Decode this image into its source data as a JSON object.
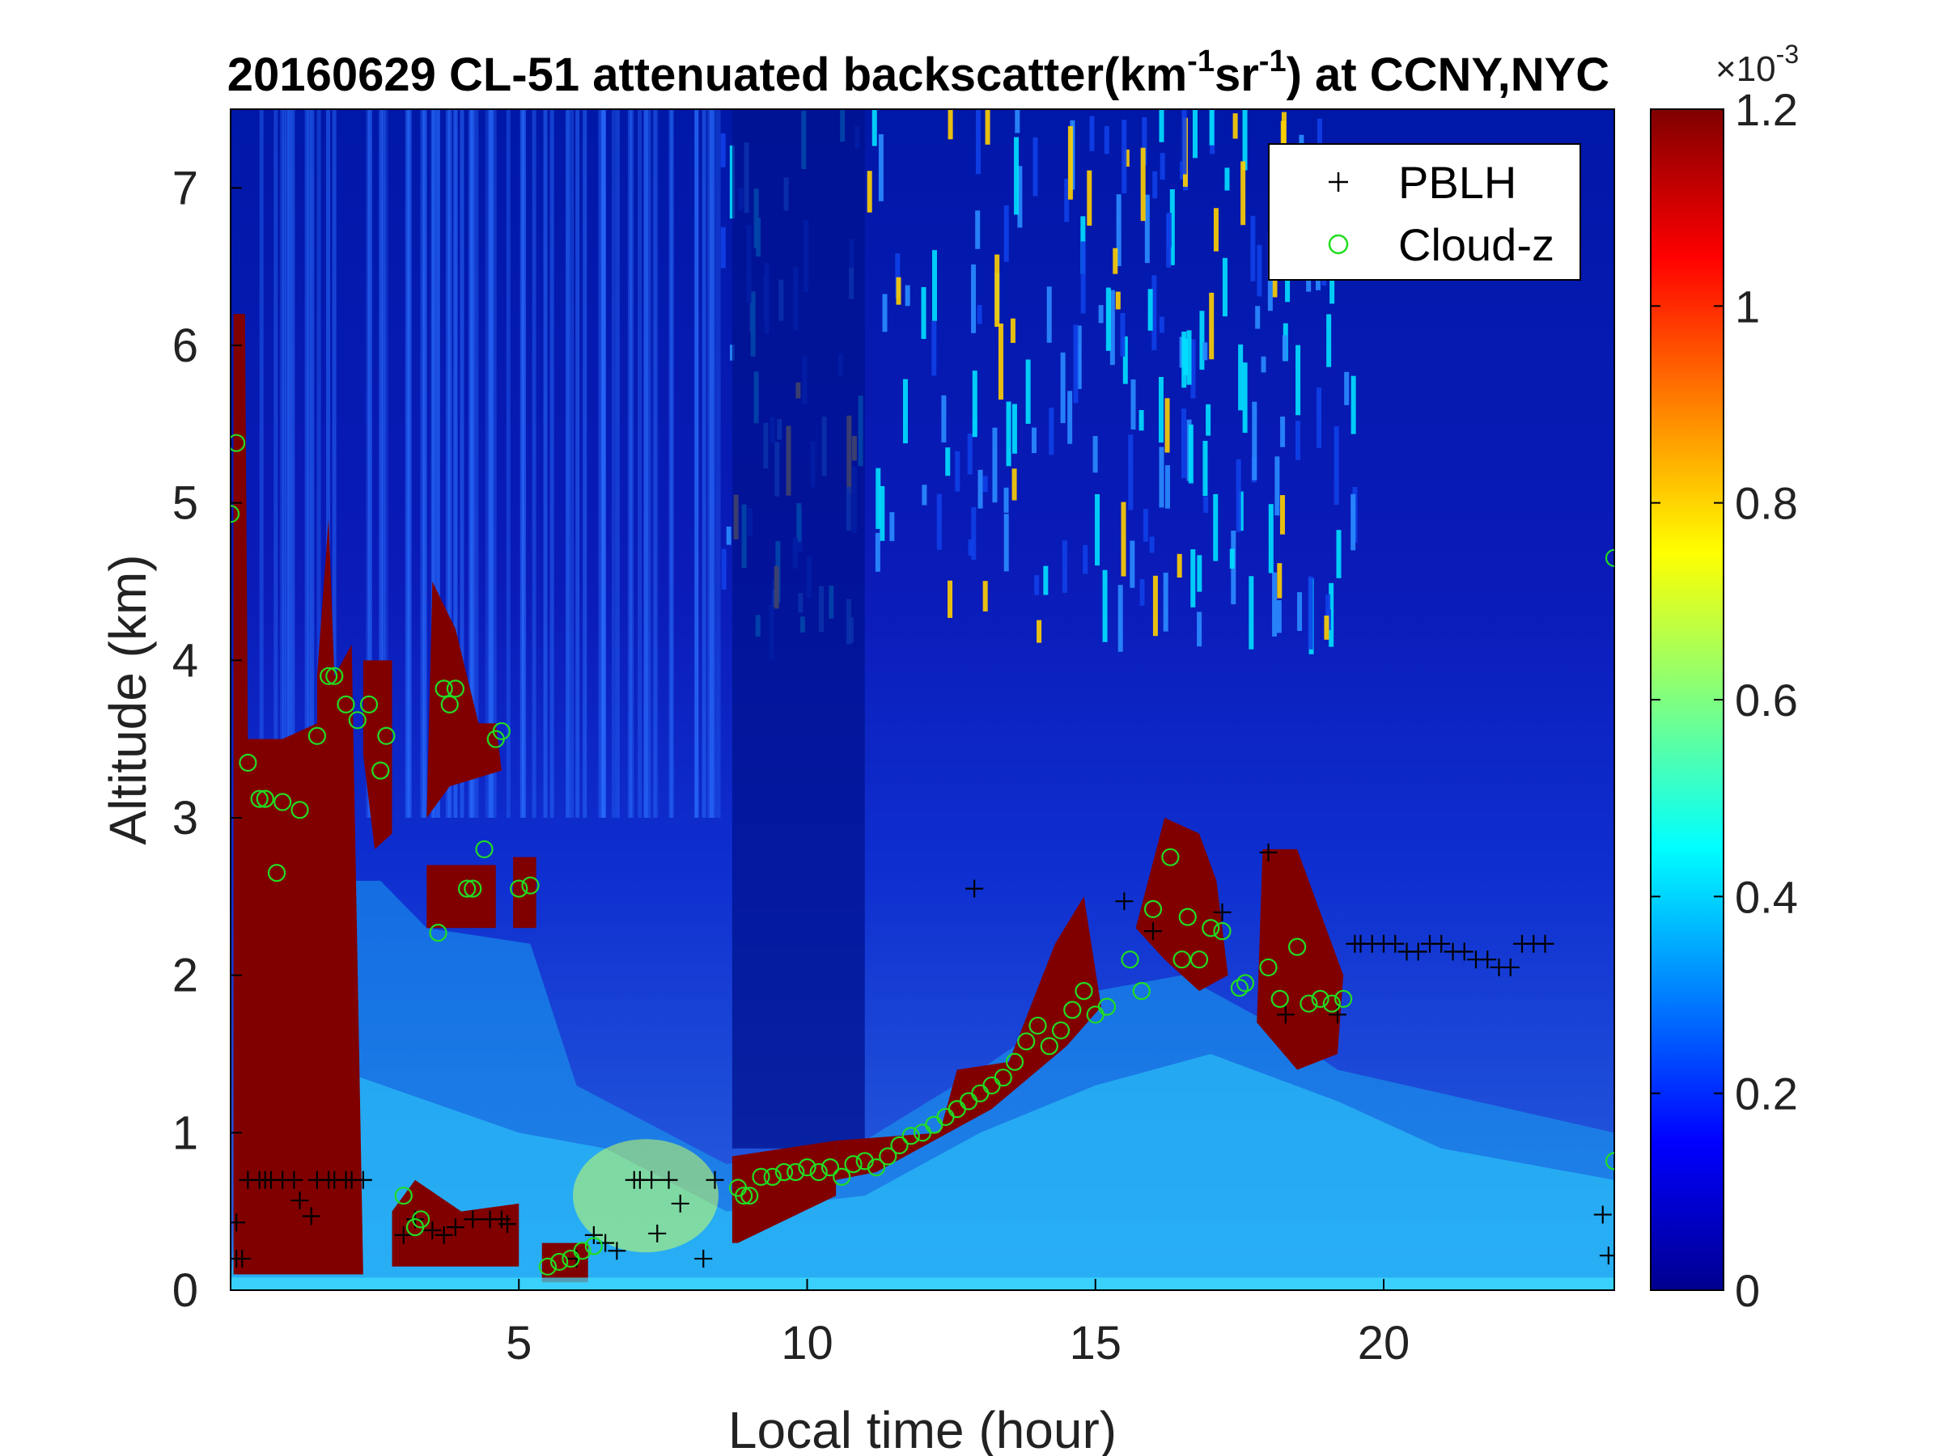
{
  "chart_data": {
    "type": "heatmap",
    "title_main": "20160629  CL-51 attenuated backscatter(km",
    "title_sup1": "-1",
    "title_mid": "sr",
    "title_sup2": "-1",
    "title_end": ") at CCNY,NYC",
    "xlabel": "Local time (hour)",
    "ylabel": "Altitude (km)",
    "xlim": [
      0,
      24
    ],
    "ylim": [
      0,
      7.5
    ],
    "x_ticks": [
      5,
      10,
      15,
      20
    ],
    "y_ticks": [
      0,
      1,
      2,
      3,
      4,
      5,
      6,
      7
    ],
    "colorbar": {
      "min": 0,
      "max": 0.0012,
      "exponent_label": "10",
      "exponent_prefix": "×",
      "exponent_sup": "-3",
      "ticks": [
        0,
        0.2,
        0.4,
        0.6,
        0.8,
        1,
        1.2
      ],
      "tick_labels": [
        "0",
        "0.2",
        "0.4",
        "0.6",
        "0.8",
        "1",
        "1.2"
      ]
    },
    "legend": {
      "placement": "top-right",
      "entries": [
        {
          "label": "PBLH",
          "marker": "+",
          "color": "#000000"
        },
        {
          "label": "Cloud-z",
          "marker": "o",
          "color": "#22dd22"
        }
      ]
    },
    "colors": {
      "background": "#00008f",
      "low": "#1a4fd6",
      "mid": "#00c8ff",
      "saturated": "#800000"
    },
    "series": [
      {
        "name": "PBLH",
        "points": [
          [
            0.1,
            0.43
          ],
          [
            0.1,
            0.2
          ],
          [
            0.2,
            0.2
          ],
          [
            0.3,
            0.7
          ],
          [
            0.5,
            0.7
          ],
          [
            0.6,
            0.7
          ],
          [
            0.7,
            0.7
          ],
          [
            0.9,
            0.7
          ],
          [
            1.1,
            0.7
          ],
          [
            1.2,
            0.57
          ],
          [
            1.4,
            0.47
          ],
          [
            1.5,
            0.7
          ],
          [
            1.7,
            0.7
          ],
          [
            1.8,
            0.7
          ],
          [
            2.0,
            0.7
          ],
          [
            2.1,
            0.7
          ],
          [
            2.3,
            0.7
          ],
          [
            3.0,
            0.35
          ],
          [
            3.2,
            0.45
          ],
          [
            3.5,
            0.38
          ],
          [
            3.7,
            0.35
          ],
          [
            3.9,
            0.4
          ],
          [
            4.2,
            0.45
          ],
          [
            4.5,
            0.45
          ],
          [
            4.7,
            0.45
          ],
          [
            4.8,
            0.42
          ],
          [
            6.0,
            0.2
          ],
          [
            6.3,
            0.35
          ],
          [
            6.5,
            0.3
          ],
          [
            6.7,
            0.25
          ],
          [
            7.0,
            0.7
          ],
          [
            7.1,
            0.7
          ],
          [
            7.3,
            0.7
          ],
          [
            7.4,
            0.36
          ],
          [
            7.6,
            0.7
          ],
          [
            7.8,
            0.55
          ],
          [
            8.2,
            0.2
          ],
          [
            8.4,
            0.7
          ],
          [
            12.9,
            2.55
          ],
          [
            15.5,
            2.47
          ],
          [
            16.0,
            2.28
          ],
          [
            17.2,
            2.4
          ],
          [
            18.0,
            2.78
          ],
          [
            18.3,
            1.75
          ],
          [
            19.2,
            1.75
          ],
          [
            19.5,
            2.2
          ],
          [
            19.6,
            2.2
          ],
          [
            19.8,
            2.2
          ],
          [
            20.0,
            2.2
          ],
          [
            20.2,
            2.2
          ],
          [
            20.4,
            2.15
          ],
          [
            20.6,
            2.15
          ],
          [
            20.8,
            2.2
          ],
          [
            21.0,
            2.2
          ],
          [
            21.2,
            2.15
          ],
          [
            21.4,
            2.15
          ],
          [
            21.6,
            2.1
          ],
          [
            21.8,
            2.1
          ],
          [
            22.0,
            2.05
          ],
          [
            22.2,
            2.05
          ],
          [
            22.4,
            2.2
          ],
          [
            22.6,
            2.2
          ],
          [
            22.8,
            2.2
          ],
          [
            23.8,
            0.48
          ],
          [
            23.9,
            0.22
          ]
        ]
      },
      {
        "name": "Cloud-z",
        "points": [
          [
            0.0,
            4.93
          ],
          [
            0.1,
            5.38
          ],
          [
            0.3,
            3.35
          ],
          [
            0.5,
            3.12
          ],
          [
            0.6,
            3.12
          ],
          [
            0.8,
            2.65
          ],
          [
            0.9,
            3.1
          ],
          [
            1.2,
            3.05
          ],
          [
            1.5,
            3.52
          ],
          [
            1.7,
            3.9
          ],
          [
            1.8,
            3.9
          ],
          [
            2.0,
            3.72
          ],
          [
            2.2,
            3.62
          ],
          [
            2.4,
            3.72
          ],
          [
            2.6,
            3.3
          ],
          [
            2.7,
            3.52
          ],
          [
            3.0,
            0.6
          ],
          [
            3.2,
            0.4
          ],
          [
            3.3,
            0.45
          ],
          [
            3.6,
            2.27
          ],
          [
            3.7,
            3.82
          ],
          [
            3.8,
            3.72
          ],
          [
            3.9,
            3.82
          ],
          [
            4.1,
            2.55
          ],
          [
            4.2,
            2.55
          ],
          [
            4.4,
            2.8
          ],
          [
            4.6,
            3.5
          ],
          [
            4.7,
            3.55
          ],
          [
            5.0,
            2.55
          ],
          [
            5.2,
            2.57
          ],
          [
            5.5,
            0.15
          ],
          [
            5.7,
            0.18
          ],
          [
            5.9,
            0.2
          ],
          [
            6.1,
            0.25
          ],
          [
            6.3,
            0.28
          ],
          [
            8.8,
            0.65
          ],
          [
            8.9,
            0.6
          ],
          [
            9.0,
            0.6
          ],
          [
            9.2,
            0.72
          ],
          [
            9.4,
            0.72
          ],
          [
            9.6,
            0.75
          ],
          [
            9.8,
            0.75
          ],
          [
            10.0,
            0.78
          ],
          [
            10.2,
            0.75
          ],
          [
            10.4,
            0.78
          ],
          [
            10.6,
            0.72
          ],
          [
            10.8,
            0.8
          ],
          [
            11.0,
            0.82
          ],
          [
            11.2,
            0.78
          ],
          [
            11.4,
            0.85
          ],
          [
            11.6,
            0.92
          ],
          [
            11.8,
            0.98
          ],
          [
            12.0,
            1.0
          ],
          [
            12.2,
            1.05
          ],
          [
            12.4,
            1.1
          ],
          [
            12.6,
            1.15
          ],
          [
            12.8,
            1.2
          ],
          [
            13.0,
            1.25
          ],
          [
            13.2,
            1.3
          ],
          [
            13.4,
            1.35
          ],
          [
            13.6,
            1.45
          ],
          [
            13.8,
            1.58
          ],
          [
            14.0,
            1.68
          ],
          [
            14.2,
            1.55
          ],
          [
            14.4,
            1.65
          ],
          [
            14.6,
            1.78
          ],
          [
            14.8,
            1.9
          ],
          [
            15.0,
            1.75
          ],
          [
            15.2,
            1.8
          ],
          [
            15.6,
            2.1
          ],
          [
            15.8,
            1.9
          ],
          [
            16.0,
            2.42
          ],
          [
            16.3,
            2.75
          ],
          [
            16.5,
            2.1
          ],
          [
            16.6,
            2.37
          ],
          [
            16.8,
            2.1
          ],
          [
            17.0,
            2.3
          ],
          [
            17.2,
            2.28
          ],
          [
            17.5,
            1.92
          ],
          [
            17.6,
            1.95
          ],
          [
            18.0,
            2.05
          ],
          [
            18.2,
            1.85
          ],
          [
            18.5,
            2.18
          ],
          [
            18.7,
            1.82
          ],
          [
            18.9,
            1.85
          ],
          [
            19.1,
            1.82
          ],
          [
            19.3,
            1.85
          ],
          [
            24.0,
            4.65
          ],
          [
            24.0,
            0.82
          ]
        ]
      }
    ]
  }
}
